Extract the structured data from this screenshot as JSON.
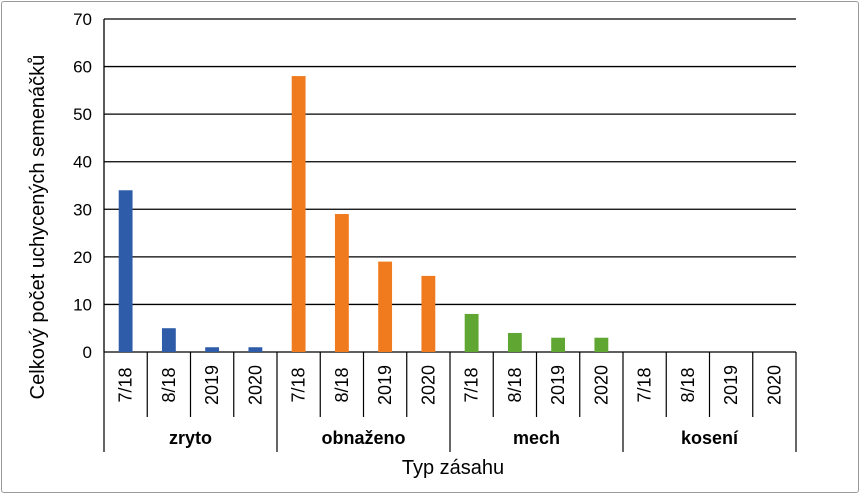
{
  "chart_data": {
    "type": "bar",
    "ylabel": "Celkový počet uchycených semenáčků",
    "xlabel": "Typ zásahu",
    "ylim": [
      0,
      70
    ],
    "yticks": [
      0,
      10,
      20,
      30,
      40,
      50,
      60,
      70
    ],
    "grid": true,
    "groups": [
      {
        "name": "zryto",
        "color": "#2e5ca8",
        "categories": [
          "7/18",
          "8/18",
          "2019",
          "2020"
        ],
        "values": [
          34,
          5,
          1,
          1
        ]
      },
      {
        "name": "obnaženo",
        "color": "#f07a1e",
        "categories": [
          "7/18",
          "8/18",
          "2019",
          "2020"
        ],
        "values": [
          58,
          29,
          19,
          16
        ]
      },
      {
        "name": "mech",
        "color": "#5fa632",
        "categories": [
          "7/18",
          "8/18",
          "2019",
          "2020"
        ],
        "values": [
          8,
          4,
          3,
          3
        ]
      },
      {
        "name": "kosení",
        "color": "#999999",
        "categories": [
          "7/18",
          "8/18",
          "2019",
          "2020"
        ],
        "values": [
          0,
          0,
          0,
          0
        ]
      }
    ]
  }
}
